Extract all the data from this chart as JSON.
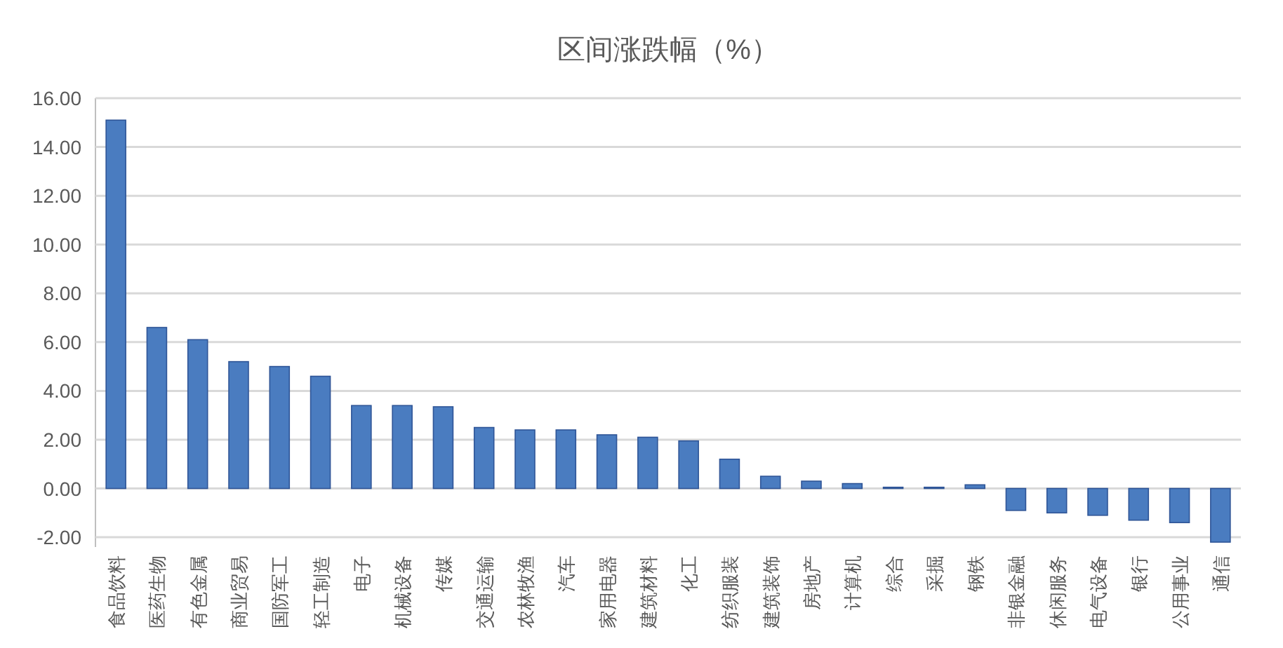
{
  "chart_data": {
    "type": "bar",
    "title": "区间涨跌幅（%）",
    "categories": [
      "食品饮料",
      "医药生物",
      "有色金属",
      "商业贸易",
      "国防军工",
      "轻工制造",
      "电子",
      "机械设备",
      "传媒",
      "交通运输",
      "农林牧渔",
      "汽车",
      "家用电器",
      "建筑材料",
      "化工",
      "纺织服装",
      "建筑装饰",
      "房地产",
      "计算机",
      "综合",
      "采掘",
      "钢铁",
      "非银金融",
      "休闲服务",
      "电气设备",
      "银行",
      "公用事业",
      "通信"
    ],
    "values": [
      15.1,
      6.6,
      6.1,
      5.2,
      5.0,
      4.6,
      3.4,
      3.4,
      3.35,
      2.5,
      2.4,
      2.4,
      2.2,
      2.1,
      1.95,
      1.2,
      0.5,
      0.3,
      0.2,
      0.05,
      0.05,
      0.15,
      -0.9,
      -1.0,
      -1.1,
      -1.3,
      -1.4,
      -2.2
    ],
    "color": "#4a7cc0",
    "ylim": [
      -2.4,
      16
    ],
    "yticks": [
      {
        "value": -2,
        "label": "-2.00"
      },
      {
        "value": 0,
        "label": "0.00"
      },
      {
        "value": 2,
        "label": "2.00"
      },
      {
        "value": 4,
        "label": "4.00"
      },
      {
        "value": 6,
        "label": "6.00"
      },
      {
        "value": 8,
        "label": "8.00"
      },
      {
        "value": 10,
        "label": "10.00"
      },
      {
        "value": 12,
        "label": "12.00"
      },
      {
        "value": 14,
        "label": "14.00"
      },
      {
        "value": 16,
        "label": "16.00"
      }
    ],
    "grid": true
  }
}
